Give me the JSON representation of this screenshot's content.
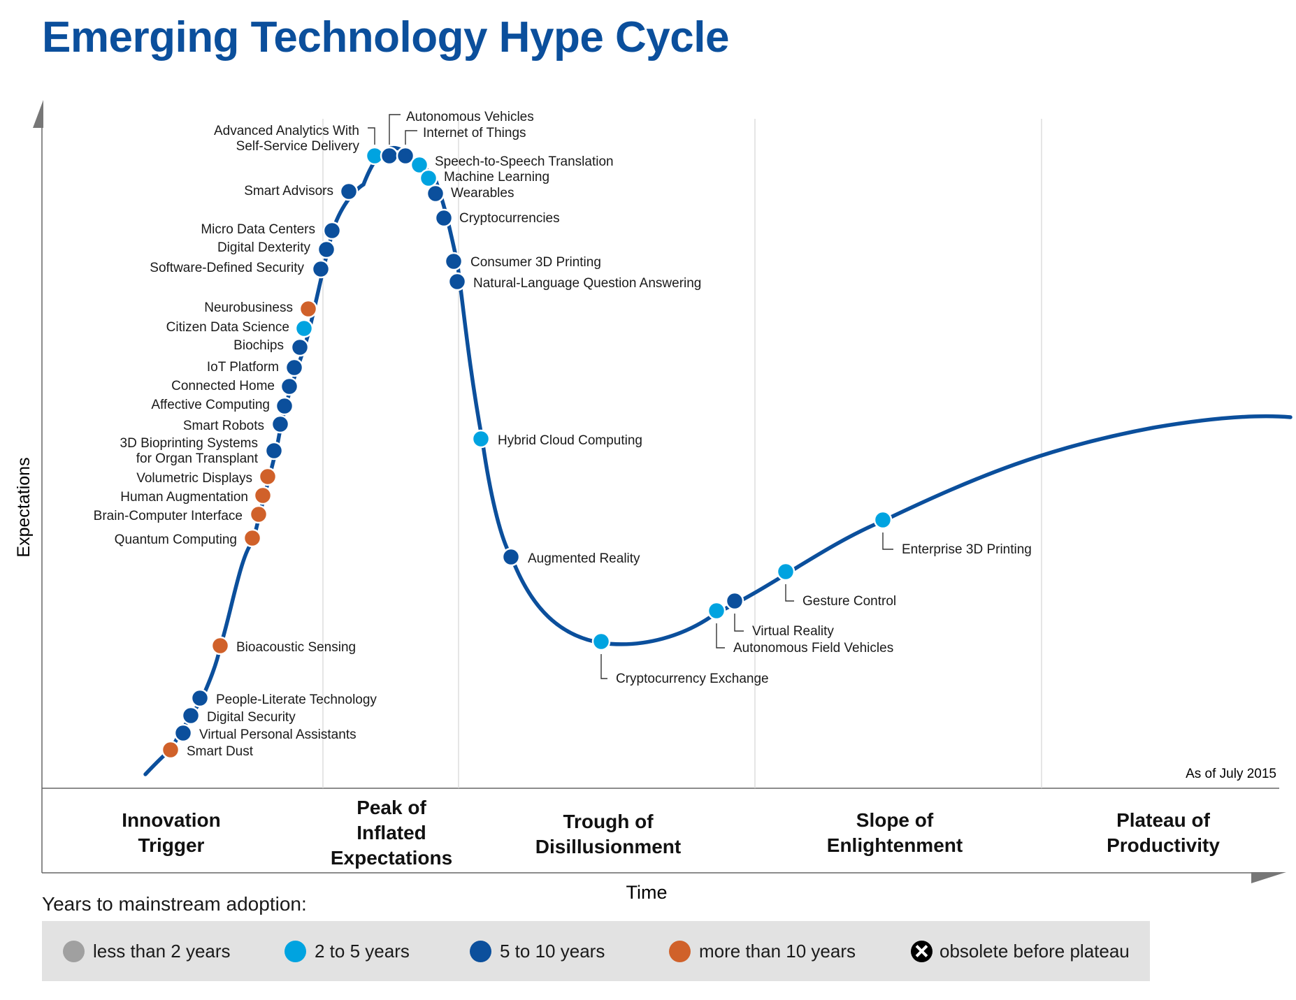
{
  "title": "Emerging Technology Hype Cycle",
  "y_axis_label": "Expectations",
  "x_axis_label": "Time",
  "as_of": "As of July 2015",
  "phases": [
    {
      "id": "innovation",
      "lines": [
        "Innovation",
        "Trigger"
      ]
    },
    {
      "id": "peak",
      "lines": [
        "Peak of",
        "Inflated",
        "Expectations"
      ]
    },
    {
      "id": "trough",
      "lines": [
        "Trough of",
        "Disillusionment"
      ]
    },
    {
      "id": "slope",
      "lines": [
        "Slope of",
        "Enlightenment"
      ]
    },
    {
      "id": "plateau",
      "lines": [
        "Plateau of",
        "Productivity"
      ]
    }
  ],
  "colors": {
    "curve": "#0b4f9c",
    "less_than_2": "#a0a0a0",
    "2_to_5": "#00a3e0",
    "5_to_10": "#0b4f9c",
    "more_than_10": "#d0612a",
    "title": "#0b4f9c"
  },
  "legend": {
    "title": "Years to mainstream adoption:",
    "items": [
      {
        "key": "less_than_2",
        "label": "less than 2 years"
      },
      {
        "key": "2_to_5",
        "label": "2 to 5 years"
      },
      {
        "key": "5_to_10",
        "label": "5 to 10 years"
      },
      {
        "key": "more_than_10",
        "label": "more than 10 years"
      },
      {
        "key": "obsolete",
        "label": "obsolete before plateau"
      }
    ]
  },
  "technologies": [
    {
      "name": "Smart Dust",
      "adoption": "more_than_10"
    },
    {
      "name": "Virtual Personal Assistants",
      "adoption": "5_to_10"
    },
    {
      "name": "Digital Security",
      "adoption": "5_to_10"
    },
    {
      "name": "People-Literate Technology",
      "adoption": "5_to_10"
    },
    {
      "name": "Bioacoustic Sensing",
      "adoption": "more_than_10"
    },
    {
      "name": "Quantum Computing",
      "adoption": "more_than_10"
    },
    {
      "name": "Brain-Computer Interface",
      "adoption": "more_than_10"
    },
    {
      "name": "Human Augmentation",
      "adoption": "more_than_10"
    },
    {
      "name": "Volumetric Displays",
      "adoption": "more_than_10"
    },
    {
      "name": "3D Bioprinting Systems|for Organ Transplant",
      "adoption": "5_to_10"
    },
    {
      "name": "Smart Robots",
      "adoption": "5_to_10"
    },
    {
      "name": "Affective Computing",
      "adoption": "5_to_10"
    },
    {
      "name": "Connected Home",
      "adoption": "5_to_10"
    },
    {
      "name": "IoT Platform",
      "adoption": "5_to_10"
    },
    {
      "name": "Biochips",
      "adoption": "5_to_10"
    },
    {
      "name": "Citizen Data Science",
      "adoption": "2_to_5"
    },
    {
      "name": "Neurobusiness",
      "adoption": "more_than_10"
    },
    {
      "name": "Software-Defined Security",
      "adoption": "5_to_10"
    },
    {
      "name": "Digital Dexterity",
      "adoption": "5_to_10"
    },
    {
      "name": "Micro Data Centers",
      "adoption": "5_to_10"
    },
    {
      "name": "Smart Advisors",
      "adoption": "5_to_10"
    },
    {
      "name": "Advanced Analytics With|Self-Service Delivery",
      "adoption": "2_to_5"
    },
    {
      "name": "Autonomous Vehicles",
      "adoption": "5_to_10"
    },
    {
      "name": "Internet of Things",
      "adoption": "5_to_10"
    },
    {
      "name": "Speech-to-Speech Translation",
      "adoption": "2_to_5"
    },
    {
      "name": "Machine Learning",
      "adoption": "2_to_5"
    },
    {
      "name": "Wearables",
      "adoption": "5_to_10"
    },
    {
      "name": "Cryptocurrencies",
      "adoption": "5_to_10"
    },
    {
      "name": "Consumer 3D Printing",
      "adoption": "5_to_10"
    },
    {
      "name": "Natural-Language Question Answering",
      "adoption": "5_to_10"
    },
    {
      "name": "Hybrid Cloud Computing",
      "adoption": "2_to_5"
    },
    {
      "name": "Augmented Reality",
      "adoption": "5_to_10"
    },
    {
      "name": "Cryptocurrency Exchange",
      "adoption": "2_to_5"
    },
    {
      "name": "Autonomous Field Vehicles",
      "adoption": "2_to_5"
    },
    {
      "name": "Virtual Reality",
      "adoption": "5_to_10"
    },
    {
      "name": "Gesture Control",
      "adoption": "2_to_5"
    },
    {
      "name": "Enterprise 3D Printing",
      "adoption": "2_to_5"
    }
  ]
}
